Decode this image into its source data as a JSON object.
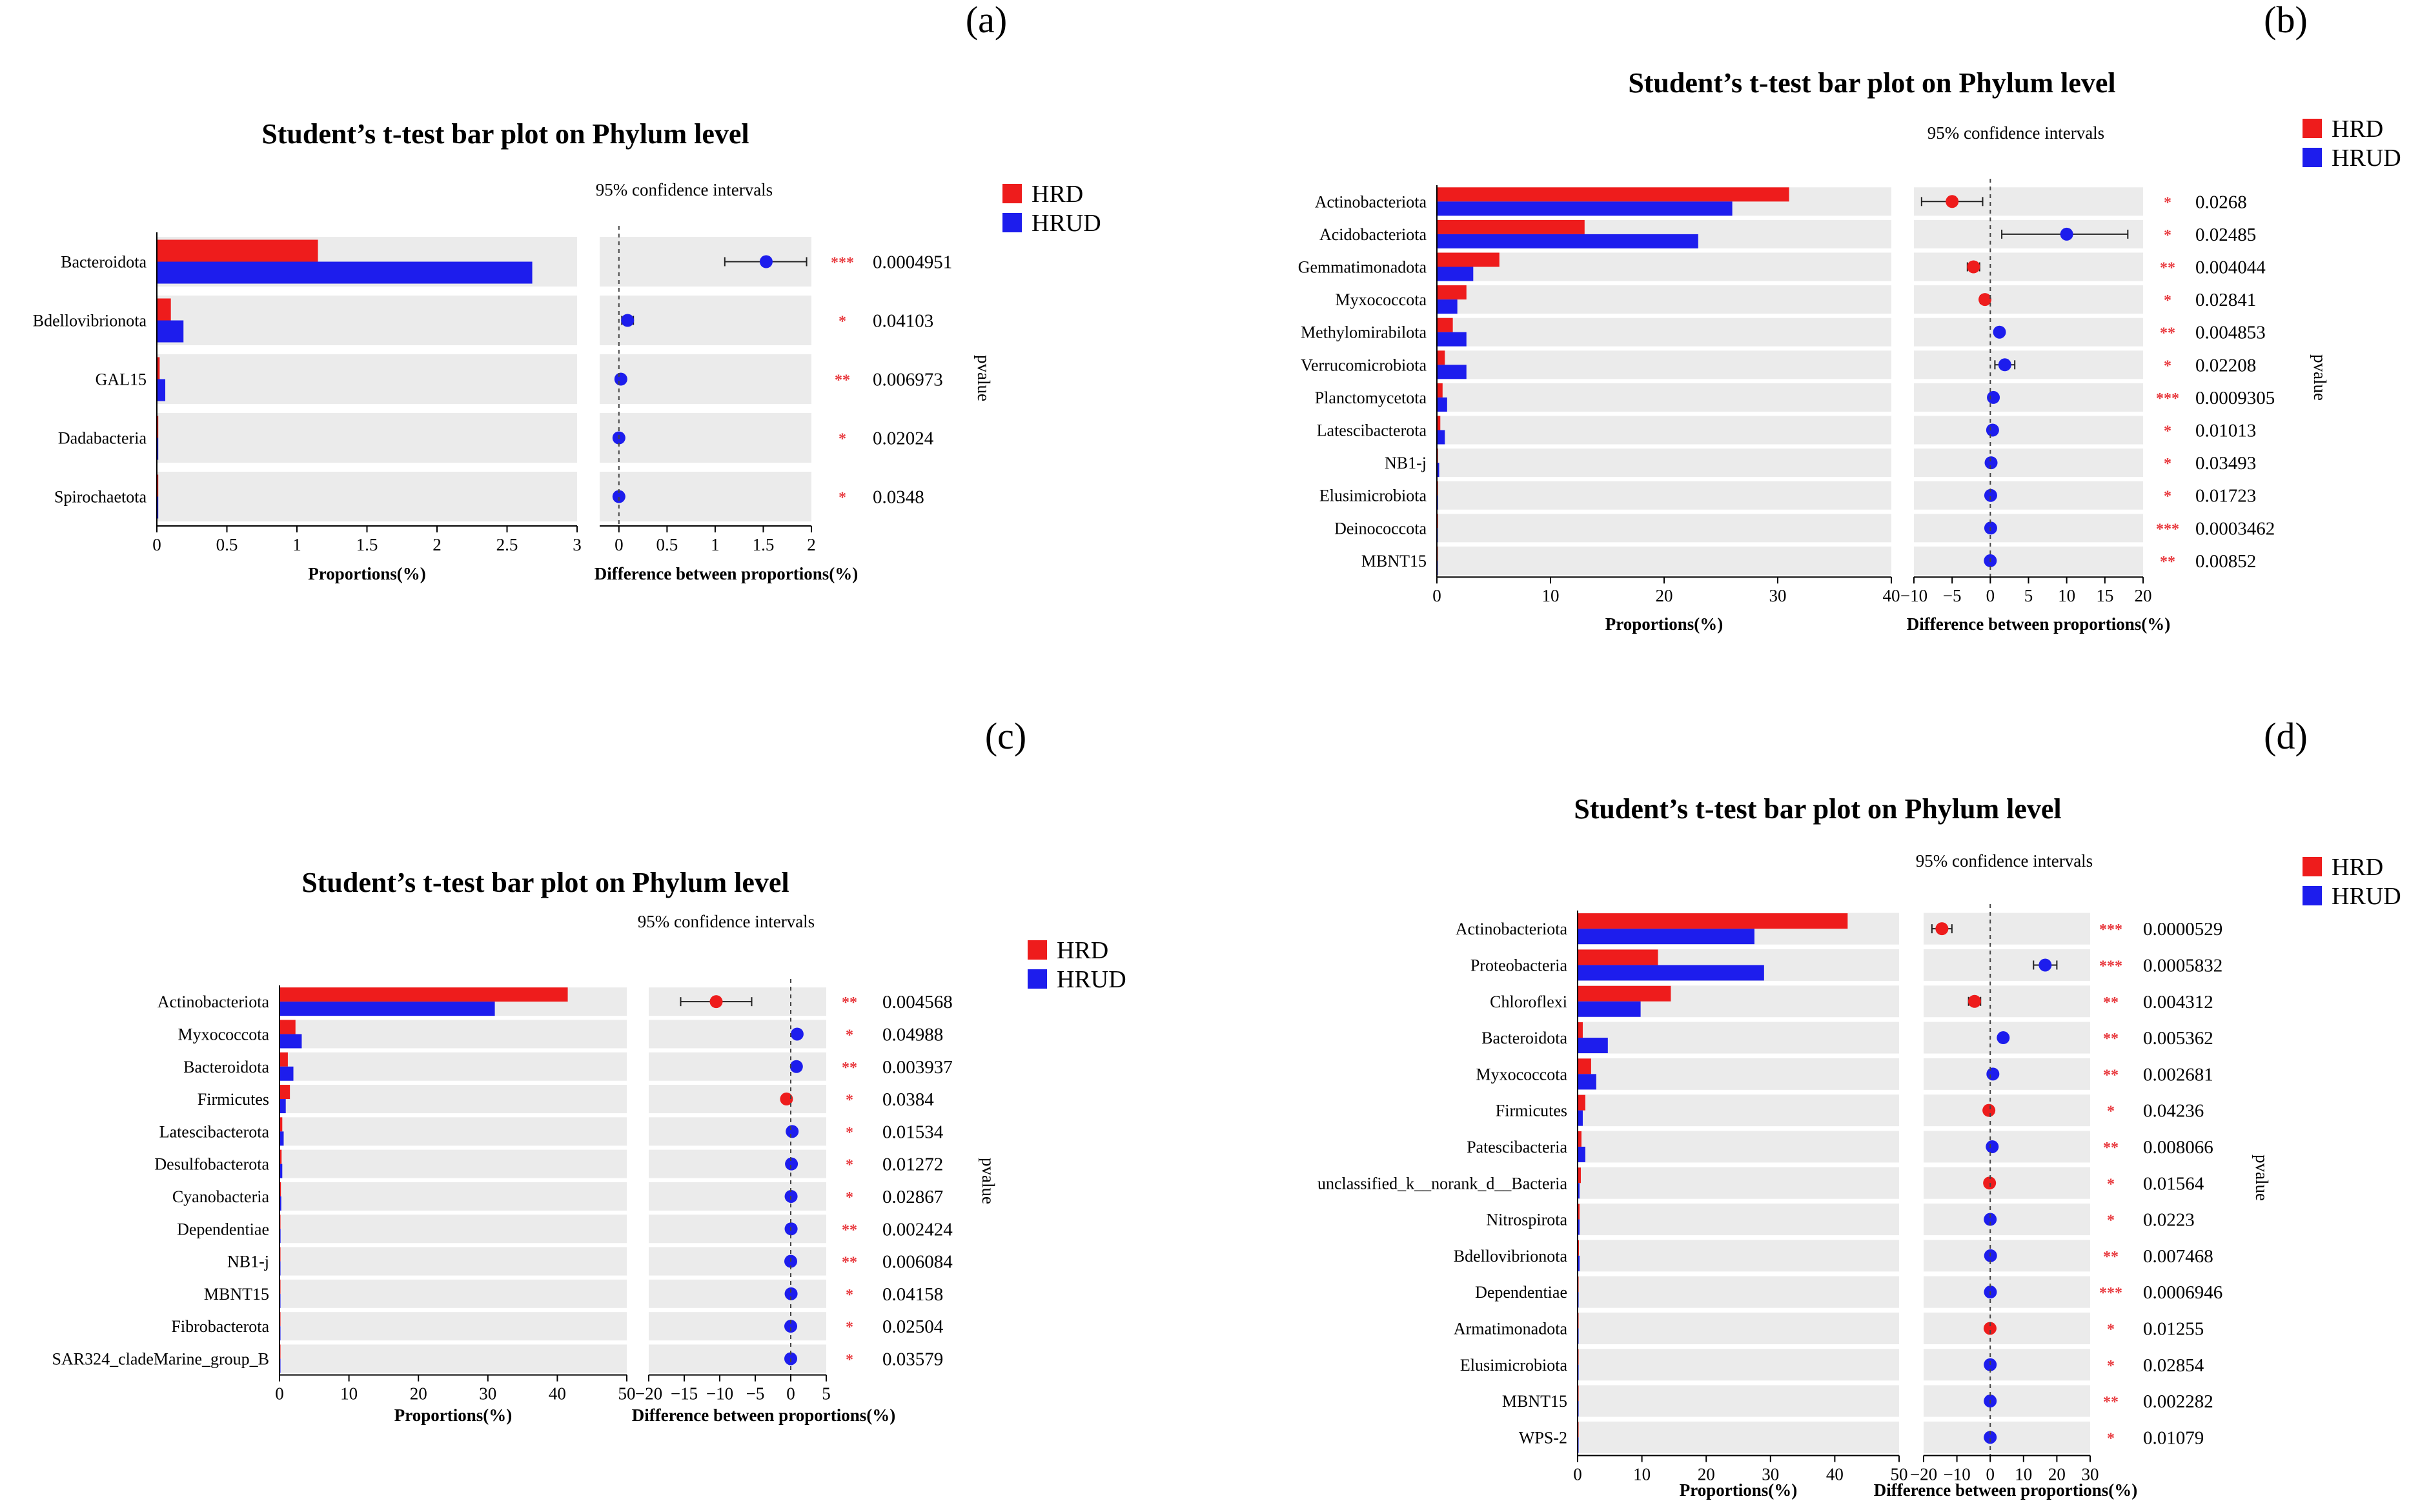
{
  "legend": {
    "hrd_label": "HRD",
    "hrud_label": "HRUD"
  },
  "colors": {
    "hrd": "#ee1c1c",
    "hrud": "#1d1ded",
    "band": "#ebebeb",
    "sig": "#e8383d",
    "axis": "#000000"
  },
  "chart_data": [
    {
      "panel_label": "(a)",
      "type": "bar",
      "title": "Student’s t-test bar plot on Phylum level",
      "ci_label": "95% confidence intervals",
      "xlabel": "Proportions(%)",
      "diff_xlabel": "Difference between proportions(%)",
      "pvalue_label": "pvalue",
      "xlim": [
        0,
        3
      ],
      "xticks": [
        "0",
        "0.5",
        "1",
        "1.5",
        "2",
        "2.5",
        "3"
      ],
      "diff_xlim": [
        -0.2,
        2
      ],
      "diff_xticks": [
        "0",
        "0.5",
        "1",
        "1.5",
        "2"
      ],
      "categories": [
        "Bacteroidota",
        "Bdellovibrionota",
        "GAL15",
        "Dadabacteria",
        "Spirochaetota"
      ],
      "series": [
        {
          "name": "HRD",
          "values": [
            1.15,
            0.1,
            0.02,
            0.01,
            0.01
          ]
        },
        {
          "name": "HRUD",
          "values": [
            2.68,
            0.19,
            0.06,
            0.01,
            0.01
          ]
        }
      ],
      "diff": [
        1.53,
        0.09,
        0.02,
        0.0,
        0.0
      ],
      "ci_low": [
        1.1,
        0.03,
        0.0,
        0.0,
        0.0
      ],
      "ci_high": [
        1.95,
        0.15,
        0.0,
        0.0,
        0.0
      ],
      "stars": [
        "***",
        "*",
        "**",
        "*",
        "*"
      ],
      "pvalues": [
        "0.0004951",
        "0.04103",
        "0.006973",
        "0.02024",
        "0.0348"
      ]
    },
    {
      "panel_label": "(b)",
      "type": "bar",
      "title": "Student’s t-test bar plot on Phylum level",
      "ci_label": "95% confidence intervals",
      "xlabel": "Proportions(%)",
      "diff_xlabel": "Difference between proportions(%)",
      "pvalue_label": "pvalue",
      "xlim": [
        0,
        40
      ],
      "xticks": [
        "0",
        "10",
        "20",
        "30",
        "40"
      ],
      "diff_xlim": [
        -10,
        20
      ],
      "diff_xticks": [
        "−10",
        "−5",
        "0",
        "5",
        "10",
        "15",
        "20"
      ],
      "categories": [
        "Actinobacteriota",
        "Acidobacteriota",
        "Gemmatimonadota",
        "Myxococcota",
        "Methylomirabilota",
        "Verrucomicrobiota",
        "Planctomycetota",
        "Latescibacterota",
        "NB1-j",
        "Elusimicrobiota",
        "Deinococcota",
        "MBNT15"
      ],
      "series": [
        {
          "name": "HRD",
          "values": [
            31,
            13,
            5.5,
            2.6,
            1.4,
            0.7,
            0.5,
            0.3,
            0.1,
            0.1,
            0.1,
            0.05
          ]
        },
        {
          "name": "HRUD",
          "values": [
            26,
            23,
            3.2,
            1.8,
            2.6,
            2.6,
            0.9,
            0.7,
            0.2,
            0.1,
            0.05,
            0.05
          ]
        }
      ],
      "diff": [
        -5,
        10,
        -2.2,
        -0.7,
        1.2,
        1.9,
        0.4,
        0.3,
        0.1,
        0.05,
        0.05,
        0.0
      ],
      "ci_low": [
        -9,
        1.5,
        -3.0,
        -1.3,
        0.8,
        0.6,
        0.0,
        0.0,
        0.0,
        0.0,
        0.0,
        0.0
      ],
      "ci_high": [
        -1,
        18,
        -1.4,
        -0.1,
        1.6,
        3.2,
        0.8,
        0.6,
        0.2,
        0.1,
        0.1,
        0.0
      ],
      "stars": [
        "*",
        "*",
        "**",
        "*",
        "**",
        "*",
        "***",
        "*",
        "*",
        "*",
        "***",
        "**"
      ],
      "pvalues": [
        "0.0268",
        "0.02485",
        "0.004044",
        "0.02841",
        "0.004853",
        "0.02208",
        "0.0009305",
        "0.01013",
        "0.03493",
        "0.01723",
        "0.0003462",
        "0.00852"
      ]
    },
    {
      "panel_label": "(c)",
      "type": "bar",
      "title": "Student’s t-test bar plot on Phylum level",
      "ci_label": "95% confidence intervals",
      "xlabel": "Proportions(%)",
      "diff_xlabel": "Difference between proportions(%)",
      "pvalue_label": "pvalue",
      "xlim": [
        0,
        50
      ],
      "xticks": [
        "0",
        "10",
        "20",
        "30",
        "40",
        "50"
      ],
      "diff_xlim": [
        -20,
        5
      ],
      "diff_xticks": [
        "−20",
        "−15",
        "−10",
        "−5",
        "0",
        "5"
      ],
      "categories": [
        "Actinobacteriota",
        "Myxococcota",
        "Bacteroidota",
        "Firmicutes",
        "Latescibacterota",
        "Desulfobacterota",
        "Cyanobacteria",
        "Dependentiae",
        "NB1-j",
        "MBNT15",
        "Fibrobacterota",
        "SAR324_cladeMarine_group_B"
      ],
      "series": [
        {
          "name": "HRD",
          "values": [
            41.5,
            2.3,
            1.2,
            1.5,
            0.4,
            0.3,
            0.2,
            0.1,
            0.1,
            0.05,
            0.05,
            0.05
          ]
        },
        {
          "name": "HRUD",
          "values": [
            31,
            3.2,
            2.0,
            0.9,
            0.6,
            0.4,
            0.25,
            0.15,
            0.1,
            0.1,
            0.05,
            0.05
          ]
        }
      ],
      "diff": [
        -10.5,
        0.9,
        0.8,
        -0.6,
        0.2,
        0.1,
        0.05,
        0.05,
        0.0,
        0.05,
        0.0,
        0.0
      ],
      "ci_low": [
        -15.5,
        0.5,
        0.3,
        -1.1,
        0.0,
        0.0,
        0.0,
        0.0,
        0.0,
        0.0,
        0.0,
        0.0
      ],
      "ci_high": [
        -5.5,
        1.3,
        1.3,
        -0.1,
        0.4,
        0.2,
        0.1,
        0.1,
        0.0,
        0.1,
        0.0,
        0.0
      ],
      "stars": [
        "**",
        "*",
        "**",
        "*",
        "*",
        "*",
        "*",
        "**",
        "**",
        "*",
        "*",
        "*"
      ],
      "pvalues": [
        "0.004568",
        "0.04988",
        "0.003937",
        "0.0384",
        "0.01534",
        "0.01272",
        "0.02867",
        "0.002424",
        "0.006084",
        "0.04158",
        "0.02504",
        "0.03579"
      ]
    },
    {
      "panel_label": "(d)",
      "type": "bar",
      "title": "Student’s t-test bar plot on Phylum level",
      "ci_label": "95% confidence intervals",
      "xlabel": "Proportions(%)",
      "diff_xlabel": "Difference between proportions(%)",
      "pvalue_label": "pvalue",
      "xlim": [
        0,
        50
      ],
      "xticks": [
        "0",
        "10",
        "20",
        "30",
        "40",
        "50"
      ],
      "diff_xlim": [
        -20,
        30
      ],
      "diff_xticks": [
        "−20",
        "−10",
        "0",
        "10",
        "20",
        "30"
      ],
      "categories": [
        "Actinobacteriota",
        "Proteobacteria",
        "Chloroflexi",
        "Bacteroidota",
        "Myxococcota",
        "Firmicutes",
        "Patescibacteria",
        "unclassified_k__norank_d__Bacteria",
        "Nitrospirota",
        "Bdellovibrionota",
        "Dependentiae",
        "Armatimonadota",
        "Elusimicrobiota",
        "MBNT15",
        "WPS-2"
      ],
      "series": [
        {
          "name": "HRD",
          "values": [
            42,
            12.5,
            14.5,
            0.8,
            2.1,
            1.2,
            0.6,
            0.5,
            0.3,
            0.2,
            0.15,
            0.1,
            0.1,
            0.05,
            0.05
          ]
        },
        {
          "name": "HRUD",
          "values": [
            27.5,
            29,
            9.8,
            4.7,
            2.9,
            0.8,
            1.2,
            0.3,
            0.3,
            0.3,
            0.1,
            0.05,
            0.1,
            0.05,
            0.05
          ]
        }
      ],
      "diff": [
        -14.5,
        16.5,
        -4.7,
        3.9,
        0.8,
        -0.4,
        0.6,
        -0.2,
        0.0,
        0.1,
        0.05,
        -0.05,
        0.0,
        0.0,
        0.0
      ],
      "ci_low": [
        -17.5,
        13,
        -6.5,
        2.8,
        0.2,
        -0.8,
        0.2,
        -0.4,
        0.0,
        0.0,
        0.0,
        -0.1,
        0.0,
        0.0,
        0.0
      ],
      "ci_high": [
        -11.5,
        20,
        -2.9,
        5.0,
        1.4,
        0.0,
        1.0,
        0.0,
        0.0,
        0.2,
        0.1,
        0.0,
        0.0,
        0.0,
        0.0
      ],
      "stars": [
        "***",
        "***",
        "**",
        "**",
        "**",
        "*",
        "**",
        "*",
        "*",
        "**",
        "***",
        "*",
        "*",
        "**",
        "*"
      ],
      "pvalues": [
        "0.0000529",
        "0.0005832",
        "0.004312",
        "0.005362",
        "0.002681",
        "0.04236",
        "0.008066",
        "0.01564",
        "0.0223",
        "0.007468",
        "0.0006946",
        "0.01255",
        "0.02854",
        "0.002282",
        "0.01079"
      ]
    }
  ]
}
